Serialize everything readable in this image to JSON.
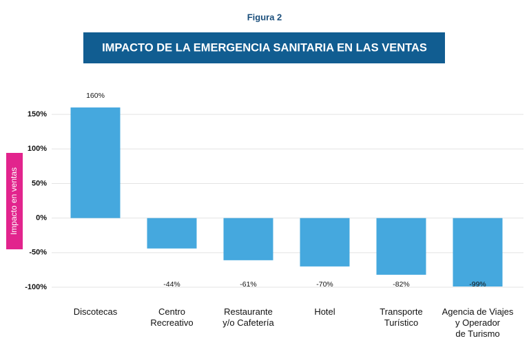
{
  "chart_data": {
    "type": "bar",
    "figure_label": "Figura 2",
    "title": "IMPACTO DE LA EMERGENCIA SANITARIA EN LAS VENTAS",
    "y_label": "Impacto en ventas",
    "categories": [
      "Discotecas",
      "Centro\nRecreativo",
      "Restaurante\ny/o Cafetería",
      "Hotel",
      "Transporte\nTurístico",
      "Agencia de Viajes\ny Operador\nde Turismo"
    ],
    "values": [
      160,
      -44,
      -61,
      -70,
      -82,
      -99
    ],
    "value_labels": [
      "160%",
      "-44%",
      "-61%",
      "-70%",
      "-82%",
      "-99%"
    ],
    "color": "#45a8de",
    "ylim": [
      -100,
      175
    ],
    "yticks": [
      {
        "value": -100,
        "label": "-100%"
      },
      {
        "value": -50,
        "label": "-50%"
      },
      {
        "value": 0,
        "label": "0%"
      },
      {
        "value": 50,
        "label": "50%"
      },
      {
        "value": 100,
        "label": "100%"
      },
      {
        "value": 150,
        "label": "150%"
      }
    ],
    "grid": true
  }
}
